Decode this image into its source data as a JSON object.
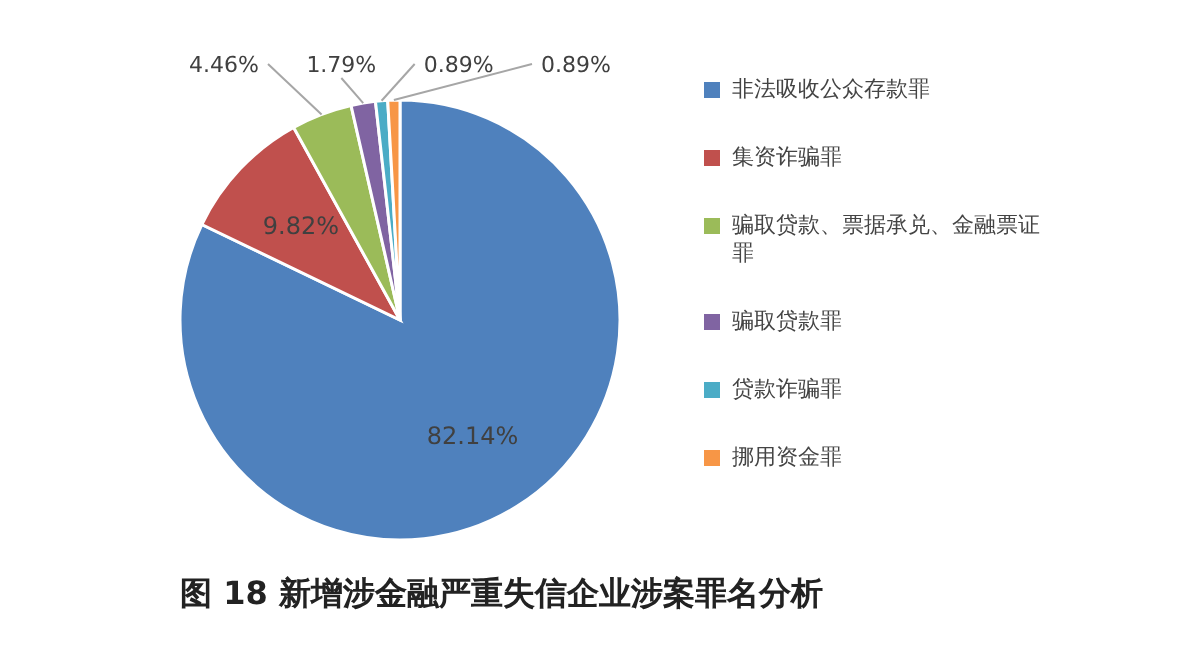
{
  "chart_data": {
    "type": "pie",
    "title": "图 18 新增涉金融严重失信企业涉案罪名分析",
    "categories": [
      "非法吸收公众存款罪",
      "集资诈骗罪",
      "骗取贷款、票据承兑、金融票证罪",
      "骗取贷款罪",
      "贷款诈骗罪",
      "挪用资金罪"
    ],
    "values": [
      82.14,
      9.82,
      4.46,
      1.79,
      0.89,
      0.89
    ],
    "value_labels": [
      "82.14%",
      "9.82%",
      "4.46%",
      "1.79%",
      "0.89%",
      "0.89%"
    ],
    "colors": [
      "#4f81bd",
      "#c0504d",
      "#9bbb59",
      "#8064a2",
      "#4bacc6",
      "#f79646"
    ],
    "legend": "right"
  }
}
